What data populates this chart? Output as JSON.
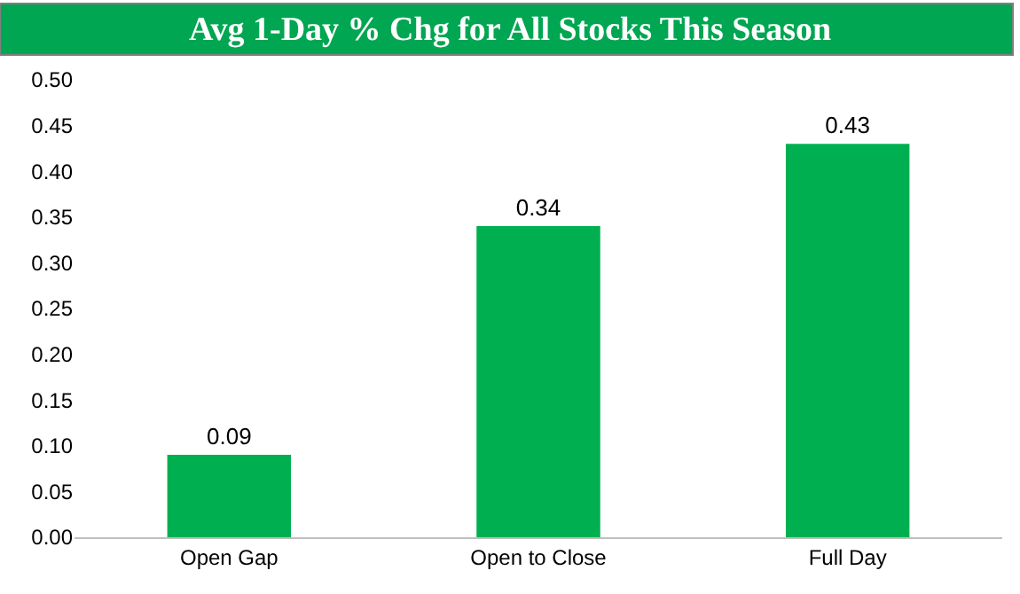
{
  "chart_data": {
    "type": "bar",
    "title": "Avg 1-Day % Chg for All Stocks This Season",
    "categories": [
      "Open Gap",
      "Open to Close",
      "Full Day"
    ],
    "values": [
      0.09,
      0.34,
      0.43
    ],
    "color": "#00b050",
    "ylim": [
      0,
      0.5
    ],
    "yticks": [
      {
        "value": 0,
        "label": "0.00"
      },
      {
        "value": 0.05,
        "label": "0.05"
      },
      {
        "value": 0.1,
        "label": "0.10"
      },
      {
        "value": 0.15,
        "label": "0.15"
      },
      {
        "value": 0.2,
        "label": "0.20"
      },
      {
        "value": 0.25,
        "label": "0.25"
      },
      {
        "value": 0.3,
        "label": "0.30"
      },
      {
        "value": 0.35,
        "label": "0.35"
      },
      {
        "value": 0.4,
        "label": "0.40"
      },
      {
        "value": 0.45,
        "label": "0.45"
      },
      {
        "value": 0.5,
        "label": "0.50"
      }
    ],
    "grid": false,
    "data_labels": true
  }
}
